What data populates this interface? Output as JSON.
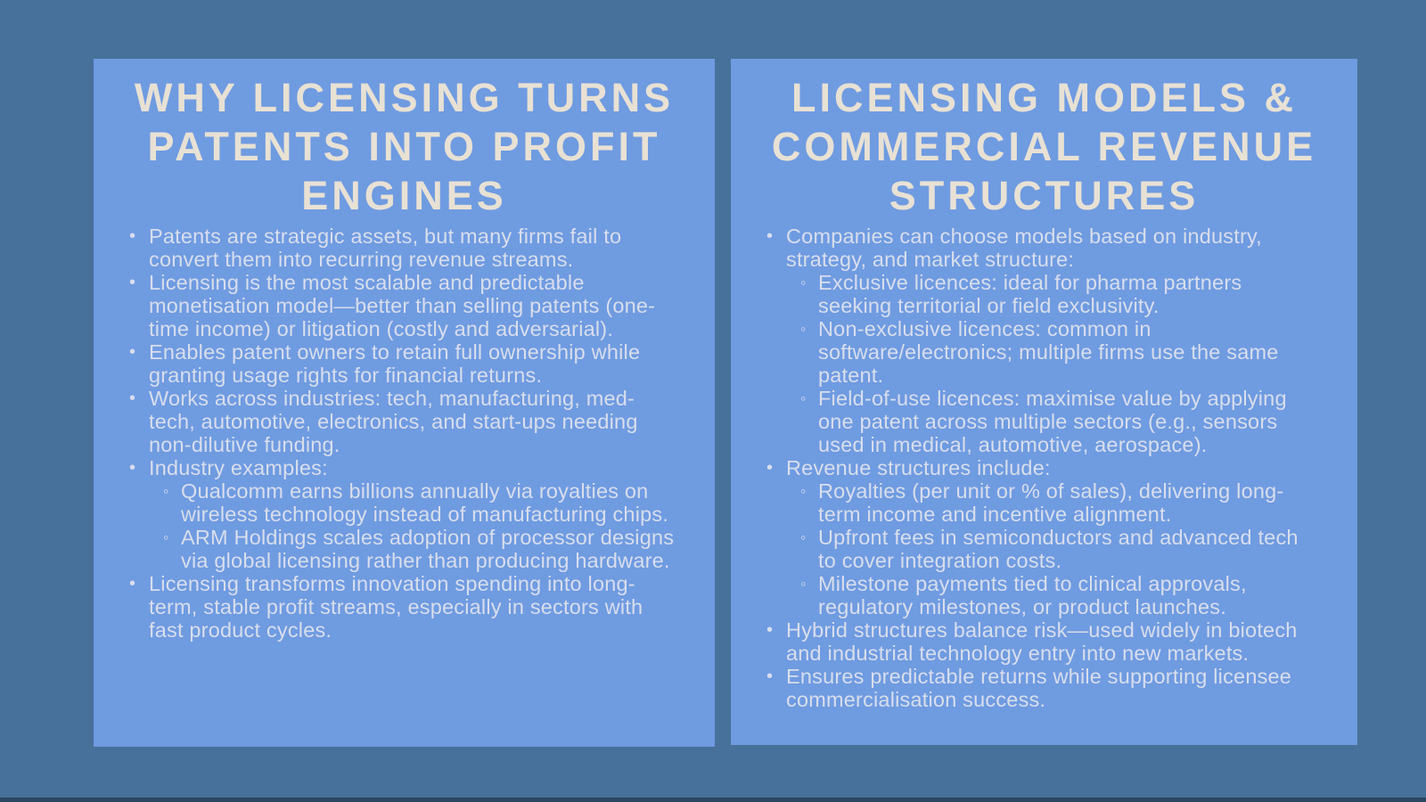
{
  "page": {
    "background_color": "#47719A",
    "bottom_strip_color": "#2B4663",
    "panel_color": "#6F9BE1",
    "title_color": "#E8E1D4",
    "body_text_color": "#D8DEEC"
  },
  "panels": [
    {
      "title": "WHY LICENSING TURNS PATENTS INTO PROFIT ENGINES",
      "bullets": [
        {
          "text": "Patents are strategic assets, but many firms fail to convert them into recurring revenue streams."
        },
        {
          "text": "Licensing is the most scalable and predictable monetisation model—better than selling patents (one-time income) or litigation (costly and adversarial)."
        },
        {
          "text": "Enables patent owners to retain full ownership while granting usage rights for financial returns."
        },
        {
          "text": "Works across industries: tech, manufacturing, med-tech, automotive, electronics, and start-ups needing non-dilutive funding."
        },
        {
          "text": "Industry examples:",
          "sub": [
            "Qualcomm earns billions annually via royalties on wireless technology instead of manufacturing chips.",
            "ARM Holdings scales adoption of processor designs via global licensing rather than producing hardware."
          ]
        },
        {
          "text": "Licensing transforms innovation spending into long-term, stable profit streams, especially in sectors with fast product cycles."
        }
      ]
    },
    {
      "title": "LICENSING MODELS & COMMERCIAL REVENUE STRUCTURES",
      "bullets": [
        {
          "text": "Companies can choose models based on industry, strategy, and market structure:",
          "sub": [
            "Exclusive licences: ideal for pharma partners seeking territorial or field exclusivity.",
            "Non-exclusive licences: common in software/electronics; multiple firms use the same patent.",
            "Field-of-use licences: maximise value by applying one patent across multiple sectors (e.g., sensors used in medical, automotive, aerospace)."
          ]
        },
        {
          "text": "Revenue structures include:",
          "sub": [
            "Royalties (per unit or % of sales), delivering long-term income and incentive alignment.",
            "Upfront fees in semiconductors and advanced tech to cover integration costs.",
            "Milestone payments tied to clinical approvals, regulatory milestones, or product launches."
          ]
        },
        {
          "text": "Hybrid structures balance risk—used widely in biotech and industrial technology entry into new markets."
        },
        {
          "text": "Ensures predictable returns while supporting licensee commercialisation success."
        }
      ]
    }
  ]
}
